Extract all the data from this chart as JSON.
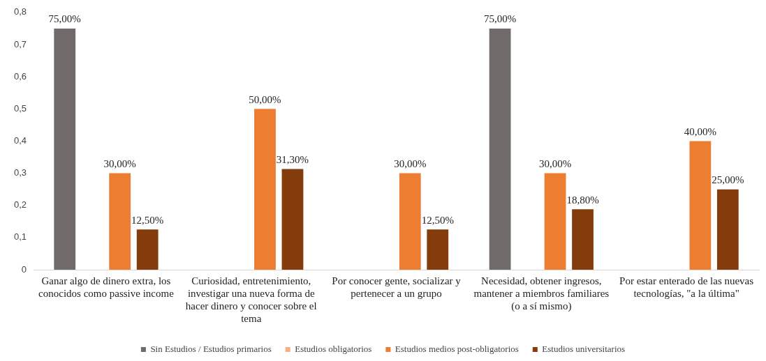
{
  "chart_data": {
    "type": "bar",
    "categories": [
      "Ganar algo de dinero extra, los conocidos como passive income",
      "Curiosidad, entretenimiento, investigar una nueva forma de hacer dinero y conocer sobre el tema",
      "Por conocer gente, socializar y pertenecer a un grupo",
      "Necesidad, obtener ingresos, mantener a miembros familiares (o a sí mismo)",
      "Por estar enterado de las nuevas tecnologías, \"a la última\""
    ],
    "series": [
      {
        "name": "Sin Estudios / Estudios primarios",
        "color": "#706b6a",
        "values": [
          0.75,
          null,
          null,
          0.75,
          null
        ],
        "value_labels": [
          "75,00%",
          null,
          null,
          "75,00%",
          null
        ]
      },
      {
        "name": "Estudios obligatorios",
        "color": "#f4b183",
        "values": [
          null,
          null,
          null,
          null,
          null
        ],
        "value_labels": [
          null,
          null,
          null,
          null,
          null
        ]
      },
      {
        "name": "Estudios medios post-obligatorios",
        "color": "#ed7d31",
        "values": [
          0.3,
          0.5,
          0.3,
          0.3,
          0.4
        ],
        "value_labels": [
          "30,00%",
          "50,00%",
          "30,00%",
          "30,00%",
          "40,00%"
        ]
      },
      {
        "name": "Estudios universitarios",
        "color": "#843c0c",
        "values": [
          0.125,
          0.313,
          0.125,
          0.188,
          0.25
        ],
        "value_labels": [
          "12,50%",
          "31,30%",
          "12,50%",
          "18,80%",
          "25,00%"
        ]
      }
    ],
    "ylim": [
      0,
      0.8
    ],
    "yticks": [
      {
        "value": 0,
        "label": "0"
      },
      {
        "value": 0.1,
        "label": "0,1"
      },
      {
        "value": 0.2,
        "label": "0,2"
      },
      {
        "value": 0.3,
        "label": "0,3"
      },
      {
        "value": 0.4,
        "label": "0,4"
      },
      {
        "value": 0.5,
        "label": "0,5"
      },
      {
        "value": 0.6,
        "label": "0,6"
      },
      {
        "value": 0.7,
        "label": "0,7"
      },
      {
        "value": 0.8,
        "label": "0,8"
      }
    ],
    "grid": false,
    "legend": "bottom"
  }
}
